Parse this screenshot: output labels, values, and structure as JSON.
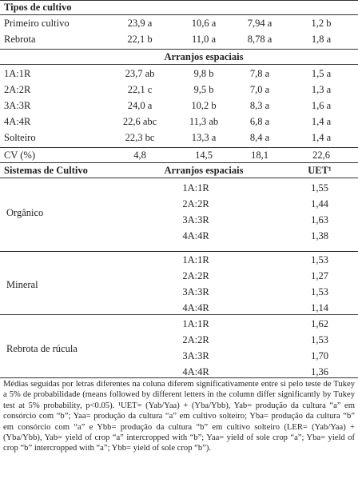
{
  "table_top": {
    "header": "Tipos de cultivo",
    "rows": [
      [
        "Primeiro cultivo",
        "23,9 a",
        "10,6 a",
        "7,94 a",
        "1,2 b"
      ],
      [
        "Rebrota",
        "22,1 b",
        "11,0 a",
        "8,78 a",
        "1,8 a"
      ]
    ],
    "subheader": "Arranjos espaciais",
    "rows2": [
      [
        "1A:1R",
        "23,7 ab",
        "9,8 b",
        "7,8 a",
        "1,5 a"
      ],
      [
        "2A:2R",
        "22,1 c",
        "9,5 b",
        "7,0 a",
        "1,3 a"
      ],
      [
        "3A:3R",
        "24,0 a",
        "10,2 b",
        "8,3 a",
        "1,6 a"
      ],
      [
        "4A:4R",
        "22,6 abc",
        "11,3 ab",
        "6,8 a",
        "1,4 a"
      ],
      [
        "Solteiro",
        "22,3 bc",
        "13,3 a",
        "8,4 a",
        "1,4 a"
      ]
    ],
    "cv": [
      "CV (%)",
      "4,8",
      "14,5",
      "18,1",
      "22,6"
    ]
  },
  "table_bottom": {
    "headers": [
      "Sistemas de Cultivo",
      "Arranjos espaciais",
      "UET¹"
    ],
    "groups": [
      {
        "system": "Orgânico",
        "rows": [
          [
            "1A:1R",
            "1,55"
          ],
          [
            "2A:2R",
            "1,44"
          ],
          [
            "3A:3R",
            "1,63"
          ],
          [
            "4A:4R",
            "1,38"
          ]
        ]
      },
      {
        "system": "Mineral",
        "rows": [
          [
            "1A:1R",
            "1,53"
          ],
          [
            "2A:2R",
            "1,27"
          ],
          [
            "3A:3R",
            "1,53"
          ],
          [
            "4A:4R",
            "1,14"
          ]
        ]
      },
      {
        "system": "Rebrota de rúcula",
        "rows": [
          [
            "1A:1R",
            "1,62"
          ],
          [
            "2A:2R",
            "1,53"
          ],
          [
            "3A:3R",
            "1,70"
          ],
          [
            "4A:4R",
            "1,36"
          ]
        ]
      }
    ]
  },
  "footnote": "Médias seguidas por letras diferentes na coluna diferem significativamente entre si pelo teste de Tukey a 5% de probabilidade (means followed by different letters in the column differ significantly by Tukey test at 5% probability, p<0.05). ¹UET= (Yab/Yaa) + (Yba/Ybb), Yab= produção da cultura “a” em consórcio com “b”; Yaa= produção da cultura “a” em cultivo solteiro; Yba= produção da cultura “b” em consórcio com “a” e Ybb= produção da cultura “b” em cultivo solteiro (LER= (Yab/Yaa) + (Yba/Ybb), Yab= yield of crop “a” intercropped with “b”; Yaa= yield of sole crop “a”; Yba= yield of crop “b” intercropped with “a”; Ybb= yield of sole crop “b”)."
}
